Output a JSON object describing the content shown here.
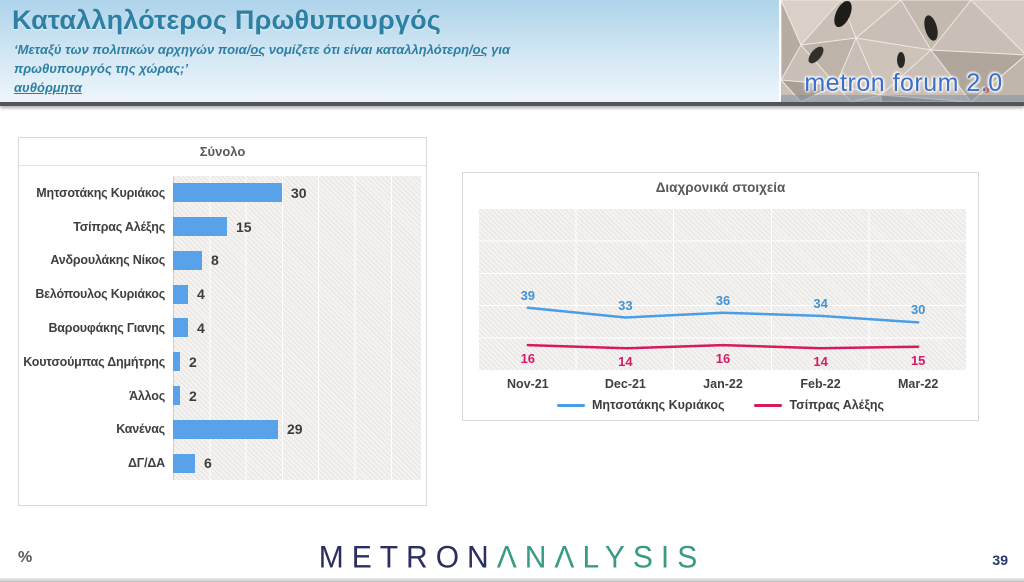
{
  "header": {
    "title": "Καταλληλότερος Πρωθυπουργός",
    "subtitle": {
      "lines": [
        {
          "segments": [
            {
              "text": "‘Μεταξύ των πολιτικών αρχηγών ποια/",
              "underline": false
            },
            {
              "text": "ος",
              "underline": true
            },
            {
              "text": " νομίζετε ότι είναι καταλληλότερη/",
              "underline": false
            },
            {
              "text": "ος",
              "underline": true
            },
            {
              "text": " για",
              "underline": false
            }
          ]
        },
        {
          "segments": [
            {
              "text": "πρωθυπουργός της χώρας;’",
              "underline": false
            }
          ]
        },
        {
          "segments": [
            {
              "text": "αυθόρμητα",
              "underline": true
            }
          ]
        }
      ]
    },
    "brand": "metron forum 2.0"
  },
  "chart_data": [
    {
      "type": "bar",
      "orientation": "horizontal",
      "title": "Σύνολο",
      "categories": [
        "Μητσοτάκης Κυριάκος",
        "Τσίπρας Αλέξης",
        "Ανδρουλάκης Νίκος",
        "Βελόπουλος Κυριάκος",
        "Βαρουφάκης Γιανης",
        "Κουτσούμπας Δημήτρης",
        "Άλλος",
        "Κανένας",
        "ΔΓ/ΔΑ"
      ],
      "values": [
        30,
        15,
        8,
        4,
        4,
        2,
        2,
        29,
        6
      ],
      "xlim": [
        0,
        68
      ],
      "grid": true,
      "bar_color": "#57a2e9",
      "value_labels": true
    },
    {
      "type": "line",
      "title": "Διαχρονικά στοιχεία",
      "x": [
        "Nov-21",
        "Dec-21",
        "Jan-22",
        "Feb-22",
        "Mar-22"
      ],
      "series": [
        {
          "name": "Μητσοτάκης Κυριάκος",
          "color": "#4a9ee6",
          "label_color": "#3e93da",
          "values": [
            39,
            33,
            36,
            34,
            30
          ]
        },
        {
          "name": "Τσίπρας Αλέξης",
          "color": "#d8195f",
          "label_color": "#d81a6a",
          "values": [
            16,
            14,
            16,
            14,
            15
          ]
        }
      ],
      "ylim": [
        0,
        100
      ],
      "grid": true,
      "legend_position": "bottom",
      "data_labels": true
    }
  ],
  "footer": {
    "unit_label": "%",
    "logo_metron": "METRON",
    "logo_analysis": "ΛNΛLYSIS",
    "page_number": "39"
  },
  "colors": {
    "title_teal": "#2d7fa3",
    "bar_blue": "#57a2e9",
    "line_blue": "#4a9ee6",
    "line_pink": "#d8195f",
    "logo_navy": "#2b2e62",
    "logo_green": "#3b9a85",
    "header_gradient_top": "#aed3ea",
    "header_divider": "#54555a",
    "brand_blue": "#3b6fc7"
  }
}
